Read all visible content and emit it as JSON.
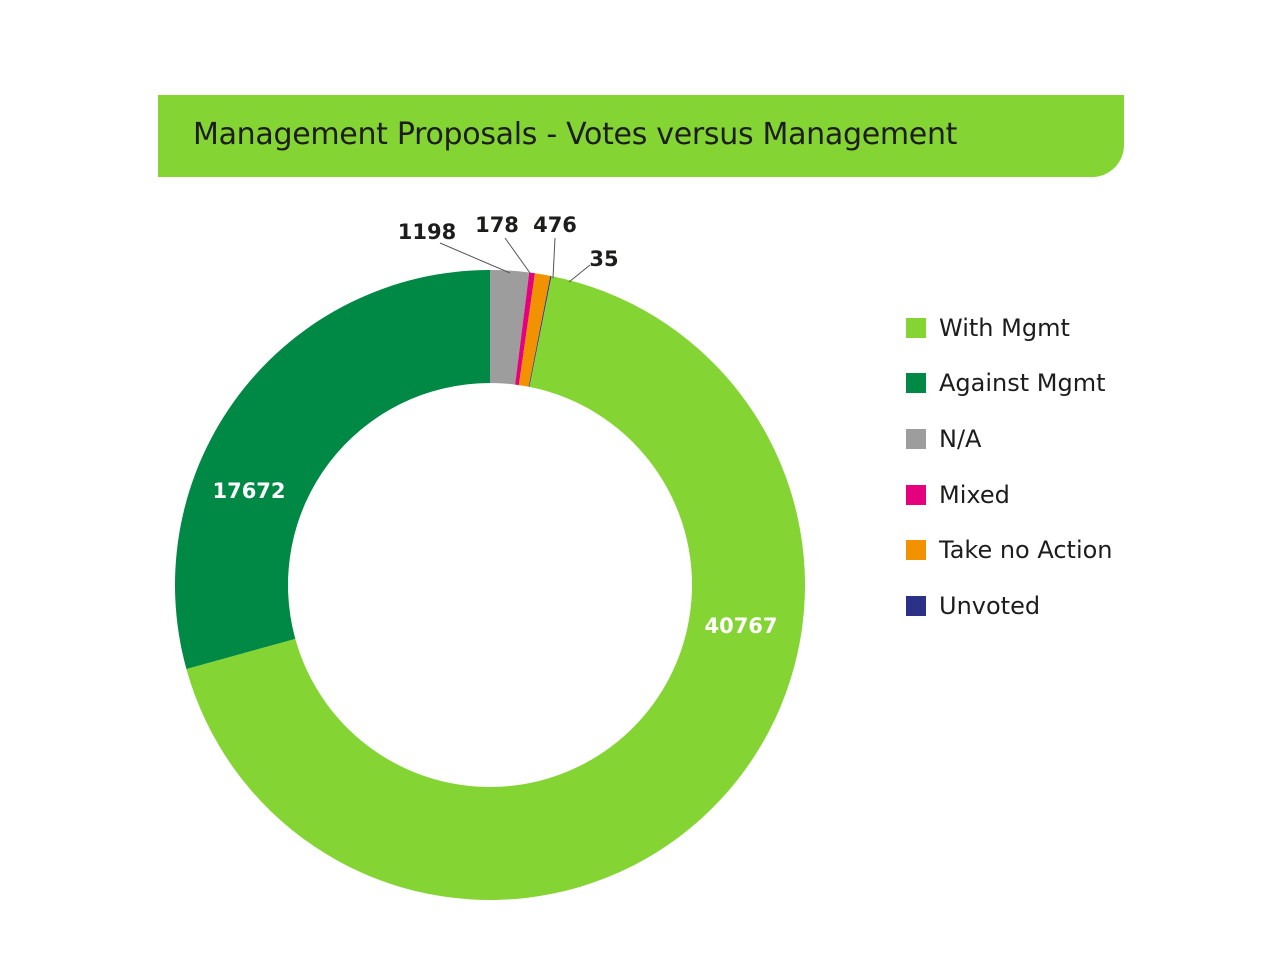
{
  "chart_data": {
    "type": "pie",
    "variant": "donut",
    "title": "Management Proposals - Votes versus Management",
    "categories": [
      "N/A",
      "Mixed",
      "Take no Action",
      "Unvoted",
      "With Mgmt",
      "Against Mgmt"
    ],
    "values": [
      1198,
      178,
      476,
      35,
      40767,
      17672
    ],
    "colors": [
      "#9d9d9d",
      "#e5007e",
      "#f39200",
      "#2c3188",
      "#84d434",
      "#008845"
    ],
    "data_labels": [
      "1198",
      "178",
      "476",
      "35",
      "40767",
      "17672"
    ],
    "legend": {
      "placement": "right",
      "items": [
        {
          "label": "With Mgmt",
          "color": "#84d434"
        },
        {
          "label": "Against Mgmt",
          "color": "#008845"
        },
        {
          "label": "N/A",
          "color": "#9d9d9d"
        },
        {
          "label": "Mixed",
          "color": "#e5007e"
        },
        {
          "label": "Take no Action",
          "color": "#f39200"
        },
        {
          "label": "Unvoted",
          "color": "#2c3188"
        }
      ]
    }
  }
}
